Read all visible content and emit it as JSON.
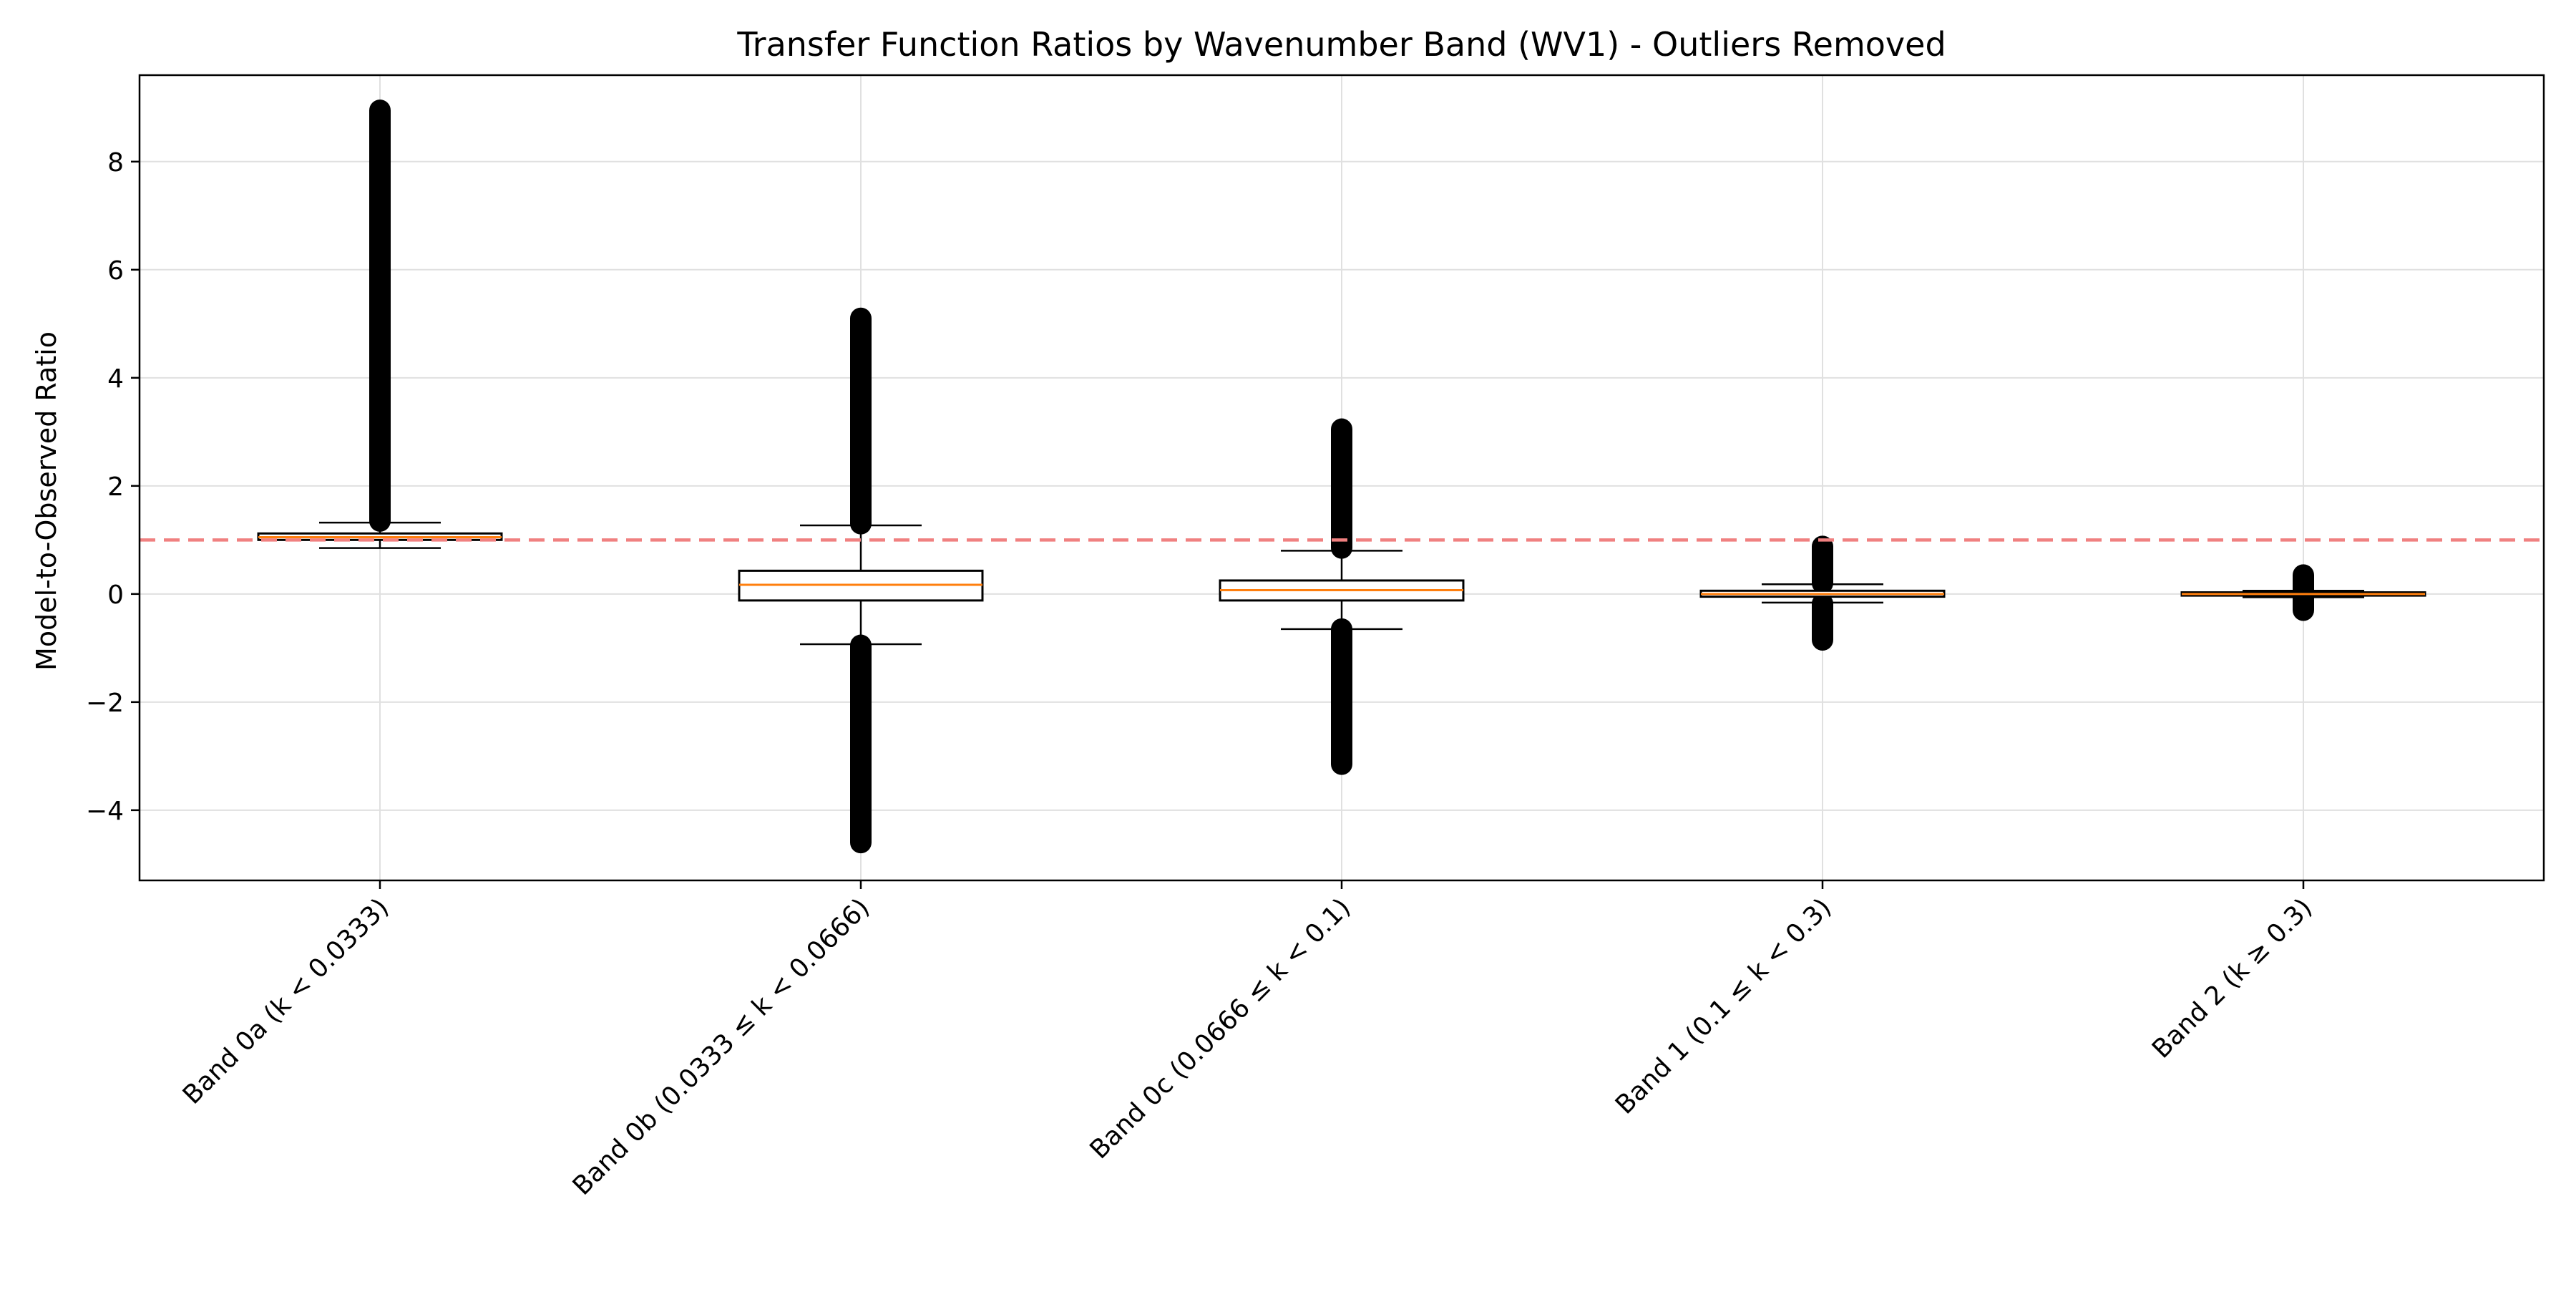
{
  "chart_data": {
    "type": "boxplot",
    "title": "Transfer Function Ratios by Wavenumber Band (WV1) - Outliers Removed",
    "xlabel": "",
    "ylabel": "Model-to-Observed Ratio",
    "ylim": [
      -5.3,
      9.6
    ],
    "yticks": [
      -4,
      -2,
      0,
      2,
      4,
      6,
      8
    ],
    "ytick_labels": [
      "−4",
      "−2",
      "0",
      "2",
      "4",
      "6",
      "8"
    ],
    "grid": true,
    "reference_line": {
      "y": 1.0,
      "color": "#f08080",
      "style": "dashed"
    },
    "colors": {
      "median": "#ff7f0e",
      "box": "#000000",
      "outlier": "#000000",
      "grid": "#e0e0e0"
    },
    "categories": [
      "Band 0a (k < 0.0333)",
      "Band 0b (0.0333 ≤ k < 0.0666)",
      "Band 0c (0.0666 ≤ k < 0.1)",
      "Band 1 (0.1 ≤ k < 0.3)",
      "Band 2 (k ≥ 0.3)"
    ],
    "boxes": [
      {
        "whisker_low": 0.85,
        "q1": 1.0,
        "median": 1.05,
        "q3": 1.12,
        "whisker_high": 1.32,
        "outliers_high": [
          1.35,
          8.95
        ],
        "outliers_low": null
      },
      {
        "whisker_low": -0.93,
        "q1": -0.12,
        "median": 0.17,
        "q3": 0.43,
        "whisker_high": 1.27,
        "outliers_high": [
          1.3,
          5.1
        ],
        "outliers_low": [
          -4.6,
          -0.95
        ]
      },
      {
        "whisker_low": -0.65,
        "q1": -0.12,
        "median": 0.07,
        "q3": 0.25,
        "whisker_high": 0.8,
        "outliers_high": [
          0.85,
          3.05
        ],
        "outliers_low": [
          -3.15,
          -0.65
        ]
      },
      {
        "whisker_low": -0.16,
        "q1": -0.05,
        "median": 0.0,
        "q3": 0.06,
        "whisker_high": 0.18,
        "outliers_high": [
          0.2,
          0.88
        ],
        "outliers_low": [
          -0.85,
          -0.18
        ]
      },
      {
        "whisker_low": -0.06,
        "q1": -0.03,
        "median": 0.0,
        "q3": 0.03,
        "whisker_high": 0.06,
        "outliers_high": [
          0.06,
          0.35
        ],
        "outliers_low": [
          -0.3,
          -0.06
        ]
      }
    ]
  }
}
